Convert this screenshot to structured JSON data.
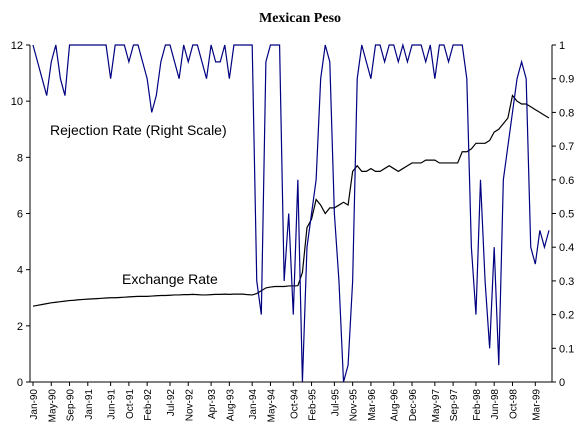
{
  "chart_data": {
    "type": "line",
    "title": "Mexican Peso",
    "annotations": [
      "Rejection Rate (Right Scale)",
      "Exchange Rate"
    ],
    "categories": [
      "Jan-90",
      null,
      null,
      null,
      "May-90",
      null,
      null,
      null,
      "Sep-90",
      null,
      null,
      null,
      "Jan-91",
      null,
      null,
      null,
      null,
      "Jun-91",
      null,
      null,
      null,
      "Oct-91",
      null,
      null,
      null,
      "Feb-92",
      null,
      null,
      null,
      null,
      "Jul-92",
      null,
      null,
      null,
      "Nov-92",
      null,
      null,
      null,
      null,
      "Apr-93",
      null,
      null,
      null,
      "Aug-93",
      null,
      null,
      null,
      null,
      "Jan-94",
      null,
      null,
      null,
      "May-94",
      null,
      null,
      null,
      null,
      "Oct-94",
      null,
      null,
      null,
      "Feb-95",
      null,
      null,
      null,
      null,
      "Jul-95",
      null,
      null,
      null,
      "Nov-95",
      null,
      null,
      null,
      "Mar-96",
      null,
      null,
      null,
      null,
      "Aug-96",
      null,
      null,
      null,
      "Dec-96",
      null,
      null,
      null,
      null,
      "May-97",
      null,
      null,
      null,
      "Sep-97",
      null,
      null,
      null,
      null,
      "Feb-98",
      null,
      null,
      null,
      "Jun-98",
      null,
      null,
      null,
      "Oct-98",
      null,
      null,
      null,
      null,
      "Mar-99",
      null,
      null,
      null
    ],
    "series": [
      {
        "name": "Exchange Rate",
        "color": "#000000",
        "axis": "y",
        "values": [
          2.7,
          2.73,
          2.76,
          2.79,
          2.82,
          2.84,
          2.86,
          2.88,
          2.9,
          2.91,
          2.93,
          2.94,
          2.95,
          2.96,
          2.97,
          2.98,
          2.99,
          3.0,
          3.0,
          3.01,
          3.02,
          3.03,
          3.04,
          3.05,
          3.05,
          3.05,
          3.06,
          3.07,
          3.08,
          3.08,
          3.09,
          3.1,
          3.1,
          3.11,
          3.11,
          3.12,
          3.11,
          3.1,
          3.1,
          3.11,
          3.12,
          3.12,
          3.13,
          3.12,
          3.13,
          3.13,
          3.13,
          3.11,
          3.1,
          3.15,
          3.25,
          3.35,
          3.38,
          3.4,
          3.4,
          3.4,
          3.42,
          3.42,
          3.43,
          3.9,
          5.5,
          5.8,
          6.5,
          6.3,
          6.0,
          6.2,
          6.2,
          6.3,
          6.4,
          6.3,
          7.5,
          7.7,
          7.5,
          7.5,
          7.6,
          7.5,
          7.5,
          7.6,
          7.7,
          7.6,
          7.5,
          7.6,
          7.7,
          7.8,
          7.8,
          7.8,
          7.9,
          7.9,
          7.9,
          7.8,
          7.8,
          7.8,
          7.8,
          7.8,
          8.2,
          8.2,
          8.3,
          8.5,
          8.5,
          8.5,
          8.6,
          8.9,
          9.0,
          9.2,
          9.4,
          10.2,
          10.0,
          9.9,
          9.9,
          9.8,
          9.7,
          9.6,
          9.5,
          9.4
        ]
      },
      {
        "name": "Rejection Rate",
        "color": "#000080",
        "axis": "y2",
        "values": [
          1,
          0.95,
          0.9,
          0.85,
          0.95,
          1,
          0.9,
          0.85,
          1,
          1,
          1,
          1,
          1,
          1,
          1,
          1,
          1,
          0.9,
          1,
          1,
          1,
          0.95,
          1,
          1,
          0.95,
          0.9,
          0.8,
          0.85,
          0.95,
          1,
          1,
          0.95,
          0.9,
          1,
          0.95,
          1,
          1,
          0.95,
          0.9,
          1,
          0.95,
          0.95,
          1,
          0.9,
          1,
          1,
          1,
          1,
          1,
          0.3,
          0.2,
          0.95,
          1,
          1,
          1,
          0.3,
          0.5,
          0.2,
          0.6,
          0,
          0.4,
          0.5,
          0.6,
          0.9,
          1,
          0.95,
          0.5,
          0.3,
          0,
          0.05,
          0.3,
          0.9,
          1,
          0.95,
          0.9,
          1,
          1,
          0.95,
          1,
          1,
          0.95,
          1,
          0.95,
          1,
          1,
          1,
          0.95,
          1,
          0.9,
          1,
          1,
          0.95,
          1,
          1,
          1,
          0.9,
          0.4,
          0.2,
          0.6,
          0.3,
          0.1,
          0.4,
          0.05,
          0.6,
          0.7,
          0.8,
          0.9,
          0.95,
          0.9,
          0.4,
          0.35,
          0.45,
          0.4,
          0.45
        ]
      }
    ],
    "ylim": [
      0,
      12
    ],
    "yticks": [
      0,
      2,
      4,
      6,
      8,
      10,
      12
    ],
    "y2lim": [
      0,
      1
    ],
    "y2ticks": [
      0,
      0.1,
      0.2,
      0.3,
      0.4,
      0.5,
      0.6,
      0.7,
      0.8,
      0.9,
      1
    ]
  }
}
